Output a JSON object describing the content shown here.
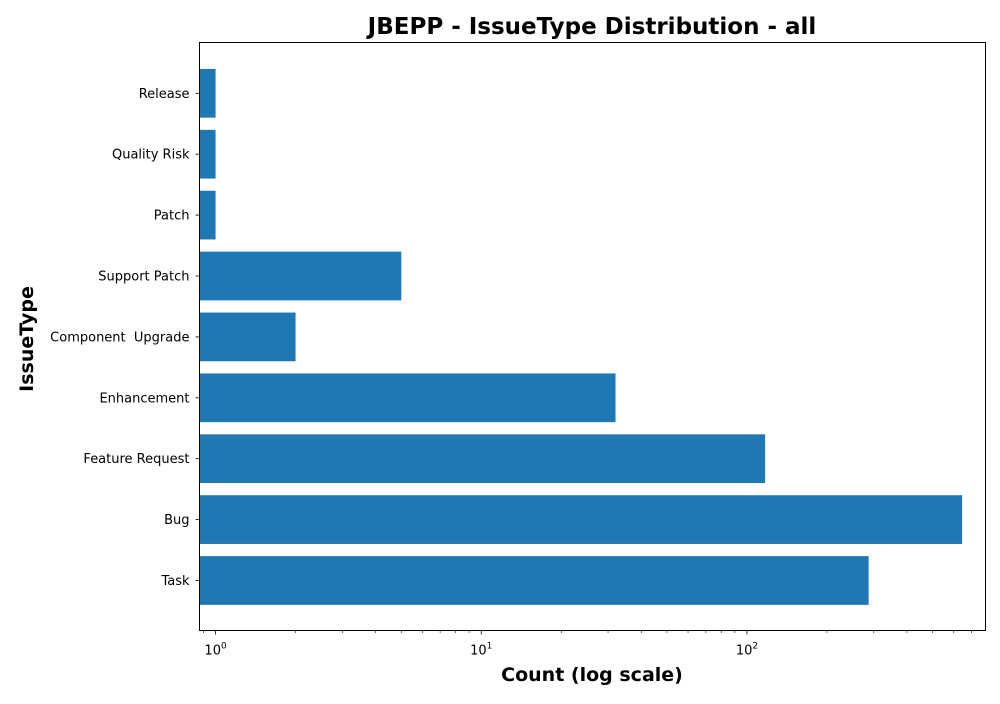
{
  "chart_data": {
    "type": "bar",
    "orientation": "horizontal",
    "title": "JBEPP - IssueType Distribution - all",
    "xlabel": "Count (log scale)",
    "ylabel": "IssueType",
    "x_scale": "log",
    "xlim": [
      0.87,
      790
    ],
    "x_ticks": [
      {
        "value": 1,
        "base": "10",
        "exp": "0"
      },
      {
        "value": 10,
        "base": "10",
        "exp": "1"
      },
      {
        "value": 100,
        "base": "10",
        "exp": "2"
      }
    ],
    "categories": [
      "Task",
      "Bug",
      "Feature Request",
      "Enhancement",
      "Component  Upgrade",
      "Support Patch",
      "Patch",
      "Quality Risk",
      "Release"
    ],
    "values": [
      287,
      645,
      117,
      32,
      2,
      5,
      1,
      1,
      1
    ],
    "bar_color": "#1f77b4",
    "grid": false,
    "legend": "none"
  }
}
